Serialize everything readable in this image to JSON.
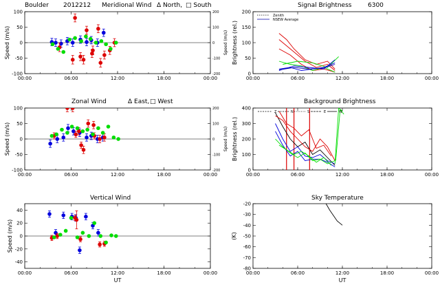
{
  "figure": {
    "site": "Boulder",
    "date": "2012212",
    "x_axis_label": "UT",
    "x_ticks": [
      "00:00",
      "06:00",
      "12:00",
      "18:00",
      "00:00"
    ]
  },
  "colors": {
    "north": "#0000dd",
    "south": "#dd0000",
    "east": "#0000dd",
    "west": "#dd0000",
    "vertical_a": "#0000dd",
    "vertical_b": "#dd0000",
    "green": "#00dd00",
    "zenith": "#000000",
    "nsew_average": "#0000aa"
  },
  "chart_data": [
    {
      "id": "meridional",
      "type": "scatter",
      "title_parts": [
        "Boulder",
        "2012212",
        "Meridional Wind",
        "Δ North,",
        "□ South"
      ],
      "ylabel": "Speed (m/s)",
      "right_ylabel": "Speed (m/s)",
      "xlim": [
        0,
        24
      ],
      "ylim": [
        -100,
        100
      ],
      "yticks": [
        -100,
        -50,
        0,
        50,
        100
      ],
      "right_ylim": [
        -200,
        200
      ],
      "right_yticks": [
        -200,
        -100,
        0,
        100,
        200
      ],
      "series": [
        {
          "name": "North",
          "color_key": "north",
          "err": 12,
          "x": [
            3.5,
            4.0,
            4.7,
            5.5,
            6.2,
            7.2,
            8.0,
            8.6,
            9.4,
            10.2
          ],
          "y": [
            2,
            0,
            -3,
            5,
            0,
            10,
            2,
            8,
            0,
            32
          ]
        },
        {
          "name": "South",
          "color_key": "south",
          "err": 13,
          "x": [
            6.5,
            7.2,
            8.0,
            8.7,
            9.5,
            10.3,
            11.0,
            11.6
          ],
          "y": [
            80,
            -45,
            40,
            -35,
            45,
            -40,
            -25,
            0
          ]
        },
        {
          "name": "South triangles",
          "color_key": "south",
          "err": 14,
          "x": [
            4.5,
            6.2,
            7.6,
            8.8,
            9.8
          ],
          "y": [
            -15,
            -55,
            -55,
            -25,
            -65
          ]
        },
        {
          "name": "Green",
          "color_key": "green",
          "err": 0,
          "x": [
            3.6,
            4.3,
            5.0,
            5.8,
            6.5,
            7.3,
            7.9,
            8.5,
            9.2,
            9.9,
            10.5,
            11.1,
            11.8
          ],
          "y": [
            -5,
            -20,
            -30,
            10,
            15,
            5,
            20,
            12,
            0,
            5,
            -5,
            -20,
            0
          ]
        }
      ]
    },
    {
      "id": "zonal",
      "type": "scatter",
      "title_parts": [
        "Zonal Wind",
        "Δ East,",
        "□ West"
      ],
      "ylabel": "Speed (m/s)",
      "right_ylabel": "Speed (m/s)",
      "xlim": [
        0,
        24
      ],
      "ylim": [
        -100,
        100
      ],
      "yticks": [
        -100,
        -50,
        0,
        50,
        100
      ],
      "right_ylim": [
        -200,
        200
      ],
      "right_yticks": [
        -200,
        -100,
        0,
        100,
        200
      ],
      "series": [
        {
          "name": "East",
          "color_key": "east",
          "err": 12,
          "x": [
            3.3,
            4.2,
            5.0,
            5.6,
            6.3,
            7.1,
            8.0,
            8.6,
            9.4,
            10.1
          ],
          "y": [
            -15,
            0,
            5,
            35,
            25,
            20,
            5,
            10,
            0,
            5
          ]
        },
        {
          "name": "West",
          "color_key": "west",
          "err": 12,
          "x": [
            5.5,
            6.2,
            7.0,
            7.6,
            8.2,
            8.9,
            9.7,
            10.3
          ],
          "y": [
            100,
            100,
            25,
            -35,
            50,
            45,
            0,
            5
          ]
        },
        {
          "name": "West triangles",
          "color_key": "west",
          "err": 10,
          "x": [
            3.8,
            6.6,
            7.3,
            9.0
          ],
          "y": [
            10,
            15,
            -20,
            10
          ]
        },
        {
          "name": "Green",
          "color_key": "green",
          "err": 0,
          "x": [
            3.5,
            4.1,
            4.8,
            5.5,
            6.1,
            6.8,
            7.5,
            8.1,
            8.8,
            9.5,
            10.1,
            10.8,
            11.5,
            12.1
          ],
          "y": [
            10,
            15,
            30,
            20,
            40,
            35,
            25,
            30,
            15,
            35,
            20,
            40,
            5,
            0
          ]
        }
      ]
    },
    {
      "id": "vertical",
      "type": "scatter",
      "title_parts": [
        "Vertical Wind"
      ],
      "ylabel": "Speed (m/s)",
      "xlim": [
        0,
        24
      ],
      "ylim": [
        -50,
        50
      ],
      "yticks": [
        -40,
        -20,
        0,
        20,
        40
      ],
      "series": [
        {
          "name": "Vertical blue",
          "color_key": "vertical_a",
          "err": 5,
          "x": [
            3.2,
            4.0,
            5.0,
            6.1,
            6.6,
            7.1,
            7.9,
            8.8,
            9.5
          ],
          "y": [
            34,
            5,
            32,
            30,
            28,
            -22,
            30,
            16,
            5
          ]
        },
        {
          "name": "Vertical red",
          "color_key": "vertical_b",
          "err": 4,
          "x": [
            3.5,
            4.2,
            6.5,
            7.2,
            9.7,
            10.3
          ],
          "y": [
            -3,
            0,
            28,
            -5,
            -13,
            -12
          ]
        },
        {
          "name": "Vertical red tall error",
          "color_key": "vertical_b",
          "err": 14,
          "x": [
            6.7
          ],
          "y": [
            25
          ]
        },
        {
          "name": "Green",
          "color_key": "green",
          "err": 0,
          "x": [
            3.8,
            4.6,
            5.3,
            6.0,
            6.8,
            7.5,
            8.3,
            9.0,
            9.8,
            10.5,
            11.2,
            11.8
          ],
          "y": [
            -2,
            2,
            8,
            28,
            -2,
            5,
            0,
            20,
            0,
            -10,
            1,
            0
          ]
        }
      ]
    },
    {
      "id": "signal",
      "type": "line",
      "title_parts": [
        "Signal Brightness",
        "6300"
      ],
      "ylabel": "Brightness (rel.)",
      "xlim": [
        0,
        24
      ],
      "ylim": [
        0,
        200
      ],
      "yticks": [
        0,
        50,
        100,
        150,
        200
      ],
      "legend": [
        "Zenith",
        "NSEW Average"
      ],
      "series": [
        {
          "name": "red1",
          "color_key": "south",
          "x": [
            3.5,
            4.5,
            5.5,
            7.0,
            8.5,
            10.0,
            11.0
          ],
          "y": [
            130,
            110,
            80,
            45,
            30,
            40,
            15
          ]
        },
        {
          "name": "red2",
          "color_key": "south",
          "x": [
            3.5,
            4.5,
            5.5,
            7.0,
            8.5,
            10.0,
            11.0
          ],
          "y": [
            110,
            90,
            70,
            40,
            20,
            30,
            10
          ]
        },
        {
          "name": "red3",
          "color_key": "south",
          "x": [
            3.5,
            5.0,
            6.5,
            8.0,
            9.5,
            11.0
          ],
          "y": [
            80,
            60,
            30,
            10,
            15,
            5
          ]
        },
        {
          "name": "green1",
          "color_key": "green",
          "x": [
            3.5,
            5.0,
            6.5,
            8.0,
            9.5,
            11.0
          ],
          "y": [
            40,
            30,
            25,
            10,
            20,
            5
          ]
        },
        {
          "name": "green2",
          "color_key": "green",
          "x": [
            4.0,
            6.0,
            8.0,
            10.0,
            11.5
          ],
          "y": [
            30,
            40,
            35,
            20,
            55
          ]
        },
        {
          "name": "blue1",
          "color_key": "north",
          "x": [
            3.5,
            5.0,
            6.5,
            8.0,
            9.5,
            11.0
          ],
          "y": [
            15,
            20,
            10,
            15,
            20,
            35
          ]
        },
        {
          "name": "blue2",
          "color_key": "north",
          "x": [
            3.5,
            5.5,
            7.5,
            9.5,
            11.0
          ],
          "y": [
            10,
            25,
            20,
            15,
            45
          ]
        },
        {
          "name": "nsew",
          "color_key": "nsew_average",
          "x": [
            3.5,
            5.5,
            7.5,
            9.5,
            11.0
          ],
          "y": [
            12,
            20,
            15,
            18,
            30
          ]
        }
      ]
    },
    {
      "id": "background",
      "type": "line",
      "title_parts": [
        "Background Brightness"
      ],
      "ylabel": "Brightness (rel.)",
      "xlim": [
        0,
        24
      ],
      "ylim": [
        0,
        400
      ],
      "yticks": [
        0,
        100,
        200,
        300,
        400
      ],
      "legend": [
        "Z",
        "N",
        "S",
        "E",
        "W"
      ],
      "vlines": {
        "color_key": "south",
        "x": [
          4.5,
          5.5,
          7.6
        ]
      },
      "series": [
        {
          "name": "black",
          "color_key": "zenith",
          "x": [
            3.0,
            4.0,
            5.0,
            6.0,
            7.0,
            8.0,
            9.0,
            10.0,
            11.0
          ],
          "y": [
            370,
            280,
            200,
            150,
            180,
            100,
            130,
            80,
            30
          ]
        },
        {
          "name": "blue1",
          "color_key": "north",
          "x": [
            3.0,
            4.0,
            5.0,
            6.0,
            7.0,
            8.0,
            9.0,
            10.0,
            11.0
          ],
          "y": [
            300,
            200,
            120,
            150,
            90,
            80,
            100,
            60,
            40
          ]
        },
        {
          "name": "blue2",
          "color_key": "north",
          "x": [
            3.0,
            4.0,
            5.0,
            6.0,
            7.0,
            8.0,
            9.0,
            10.0,
            11.0
          ],
          "y": [
            250,
            160,
            90,
            120,
            60,
            70,
            70,
            50,
            20
          ]
        },
        {
          "name": "red1",
          "color_key": "south",
          "x": [
            3.0,
            4.0,
            5.0,
            6.0,
            7.0,
            8.0,
            9.0,
            10.0,
            11.0
          ],
          "y": [
            350,
            320,
            250,
            200,
            150,
            120,
            200,
            150,
            60
          ]
        },
        {
          "name": "red2",
          "color_key": "south",
          "x": [
            3.5,
            4.5,
            5.5,
            6.5,
            7.5,
            8.5,
            9.5,
            10.5
          ],
          "y": [
            380,
            300,
            270,
            220,
            260,
            140,
            160,
            90
          ]
        },
        {
          "name": "green1",
          "color_key": "green",
          "x": [
            3.0,
            4.0,
            5.0,
            6.0,
            7.0,
            8.0,
            9.0,
            10.0,
            11.0
          ],
          "y": [
            200,
            150,
            110,
            80,
            110,
            60,
            70,
            40,
            60
          ]
        },
        {
          "name": "green2",
          "color_key": "green",
          "x": [
            3.5,
            4.5,
            5.5,
            6.5,
            7.5,
            8.5,
            9.5,
            10.5
          ],
          "y": [
            160,
            130,
            100,
            120,
            90,
            50,
            80,
            30
          ]
        },
        {
          "name": "green_spike1",
          "color_key": "green",
          "x": [
            11.0,
            11.5,
            12.0
          ],
          "y": [
            40,
            400,
            380
          ]
        },
        {
          "name": "green_spike2",
          "color_key": "green",
          "x": [
            11.1,
            11.7,
            12.2
          ],
          "y": [
            60,
            390,
            360
          ]
        }
      ]
    },
    {
      "id": "sky",
      "type": "line",
      "title_parts": [
        "Sky Temperature"
      ],
      "ylabel": "(K)",
      "xlim": [
        0,
        24
      ],
      "ylim": [
        -80,
        -20
      ],
      "yticks": [
        -80,
        -70,
        -60,
        -50,
        -40,
        -30,
        -20
      ],
      "series": [
        {
          "name": "temp",
          "color_key": "zenith",
          "x": [
            9.8,
            10.3,
            10.8,
            11.3,
            12.0
          ],
          "y": [
            -20,
            -26,
            -31,
            -36,
            -40
          ]
        }
      ]
    }
  ]
}
